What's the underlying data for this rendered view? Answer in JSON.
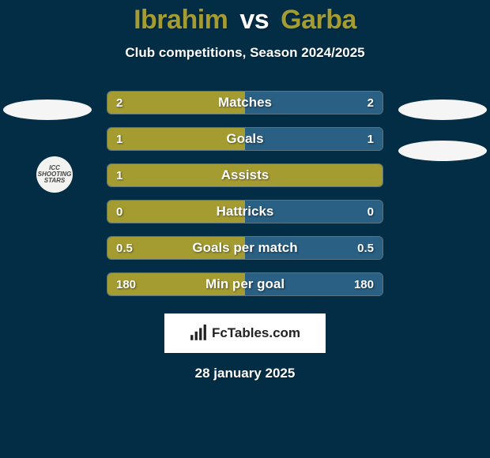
{
  "colors": {
    "background": "#032d44",
    "title_accent": "#a59c31",
    "title_white": "#ffffff",
    "bar_left": "#a59c31",
    "bar_right": "#2a6084",
    "bar_border": "#ffffff",
    "ellipse": "#f5f5f5",
    "badge_bg": "#f2f2f0",
    "badge_text": "#444444",
    "brandbox_bg": "#ffffff",
    "brandbox_text": "#222222"
  },
  "title": {
    "player1": "Ibrahim",
    "vs": "vs",
    "player2": "Garba"
  },
  "subtitle": "Club competitions, Season 2024/2025",
  "rows": [
    {
      "label": "Matches",
      "left_val": "2",
      "right_val": "2",
      "left_pct": 50,
      "right_pct": 50
    },
    {
      "label": "Goals",
      "left_val": "1",
      "right_val": "1",
      "left_pct": 50,
      "right_pct": 50
    },
    {
      "label": "Assists",
      "left_val": "1",
      "right_val": "",
      "left_pct": 100,
      "right_pct": 0
    },
    {
      "label": "Hattricks",
      "left_val": "0",
      "right_val": "0",
      "left_pct": 50,
      "right_pct": 50
    },
    {
      "label": "Goals per match",
      "left_val": "0.5",
      "right_val": "0.5",
      "left_pct": 50,
      "right_pct": 50
    },
    {
      "label": "Min per goal",
      "left_val": "180",
      "right_val": "180",
      "left_pct": 50,
      "right_pct": 50
    }
  ],
  "badge_text": "ICC SHOOTING STARS",
  "brand": "FcTables.com",
  "date": "28 january 2025"
}
